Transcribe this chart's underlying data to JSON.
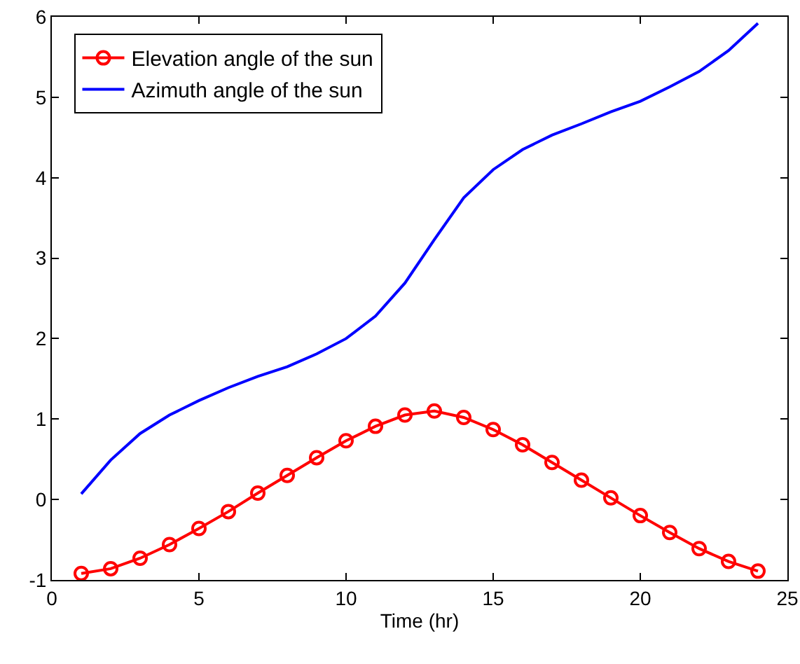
{
  "chart_data": {
    "type": "line",
    "xlabel": "Time (hr)",
    "x": [
      1,
      2,
      3,
      4,
      5,
      6,
      7,
      8,
      9,
      10,
      11,
      12,
      13,
      14,
      15,
      16,
      17,
      18,
      19,
      20,
      21,
      22,
      23,
      24
    ],
    "series": [
      {
        "name": "Elevation angle of the sun",
        "color": "#ff0000",
        "marker": "circle",
        "values": [
          -0.92,
          -0.86,
          -0.73,
          -0.56,
          -0.36,
          -0.15,
          0.08,
          0.3,
          0.52,
          0.73,
          0.91,
          1.05,
          1.1,
          1.02,
          0.87,
          0.68,
          0.46,
          0.24,
          0.02,
          -0.2,
          -0.41,
          -0.61,
          -0.77,
          -0.89
        ]
      },
      {
        "name": "Azimuth angle of the sun",
        "color": "#0000ff",
        "marker": "none",
        "values": [
          0.07,
          0.49,
          0.82,
          1.05,
          1.23,
          1.39,
          1.53,
          1.65,
          1.81,
          2.0,
          2.28,
          2.69,
          3.23,
          3.75,
          4.1,
          4.35,
          4.53,
          4.67,
          4.82,
          4.95,
          5.13,
          5.32,
          5.58,
          5.92
        ]
      }
    ],
    "xlim": [
      0,
      25
    ],
    "xticks": [
      0,
      5,
      10,
      15,
      20,
      25
    ],
    "ylim": [
      -1,
      6
    ],
    "yticks": [
      -1,
      0,
      1,
      2,
      3,
      4,
      5,
      6
    ],
    "grid": false,
    "legend": "top left",
    "line_style": "solid"
  }
}
